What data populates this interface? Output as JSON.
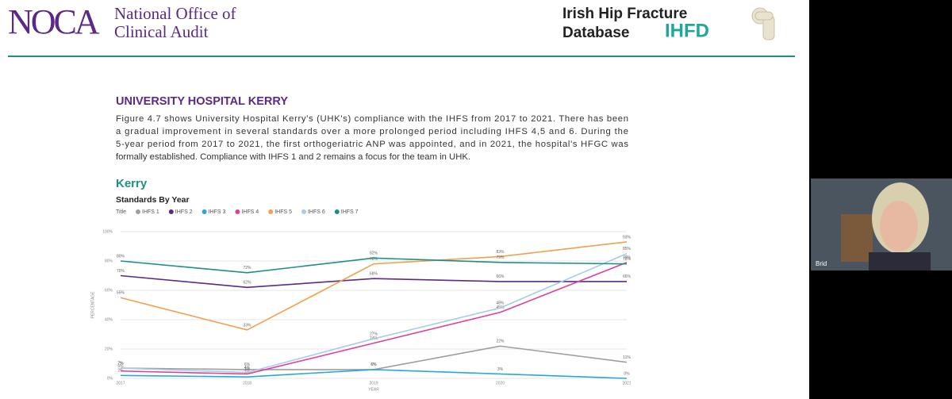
{
  "header": {
    "logo": "NOCA",
    "org_line1": "National Office of",
    "org_line2": "Clinical Audit",
    "db_line1": "Irish Hip Fracture",
    "db_line2": "Database",
    "db_abbr": "IHFD"
  },
  "section_title": "UNIVERSITY HOSPITAL KERRY",
  "paragraph": [
    "Figure 4.7 shows University Hospital Kerry's (UHK's) compliance with the IHFS from 2017 to 2021. There has been",
    "a gradual improvement in several standards over a more prolonged period including IHFS 4,5 and 6. During the",
    "5-year period from 2017 to 2021, the first orthogeriatric ANP was appointed, and in 2021, the hospital's HFGC was",
    "formally established. Compliance with IHFS 1 and 2 remains a focus for the team in UHK."
  ],
  "chart_data": {
    "type": "line",
    "title": "Kerry",
    "subtitle": "Standards By Year",
    "legend_title": "Title",
    "x_label": "YEAR",
    "y_label": "PERCENTAGE",
    "categories": [
      "2017",
      "2018",
      "2019",
      "2020",
      "2021"
    ],
    "ylim": [
      0,
      100
    ],
    "yticks": [
      {
        "value": 0,
        "label": "0%"
      },
      {
        "value": 20,
        "label": "20%"
      },
      {
        "value": 40,
        "label": "40%"
      },
      {
        "value": 60,
        "label": "60%"
      },
      {
        "value": 80,
        "label": "80%"
      },
      {
        "value": 100,
        "label": "100%"
      }
    ],
    "grid": true,
    "series": [
      {
        "name": "IHFS 1",
        "color": "#9e9e9e",
        "values": [
          7,
          6,
          6,
          22,
          11
        ],
        "value_labels": [
          "7%",
          "6%",
          "6%",
          "22%",
          "11%"
        ]
      },
      {
        "name": "IHFS 2",
        "color": "#5b2a86",
        "values": [
          70,
          62,
          68,
          66,
          66
        ],
        "value_labels": [
          "70%",
          "62%",
          "68%",
          "66%",
          "66%"
        ]
      },
      {
        "name": "IHFS 3",
        "color": "#29a8d6",
        "values": [
          2,
          1,
          6,
          3,
          0
        ],
        "value_labels": [
          "2%",
          "1%",
          "6%",
          "3%",
          "0%"
        ]
      },
      {
        "name": "IHFS 4",
        "color": "#e0409a",
        "values": [
          5,
          3,
          24,
          45,
          79
        ],
        "value_labels": [
          "5%",
          "3%",
          "24%",
          "45%",
          "79%"
        ]
      },
      {
        "name": "IHFS 5",
        "color": "#f0a050",
        "values": [
          55,
          33,
          78,
          83,
          93
        ],
        "value_labels": [
          "55%",
          "33%",
          "78%",
          "83%",
          "93%"
        ]
      },
      {
        "name": "IHFS 6",
        "color": "#a9cbe8",
        "values": [
          7,
          4,
          27,
          48,
          85
        ],
        "value_labels": [
          "7%",
          "4%",
          "27%",
          "48%",
          "85%"
        ]
      },
      {
        "name": "IHFS 7",
        "color": "#1f8f86",
        "values": [
          80,
          72,
          82,
          79,
          78
        ],
        "value_labels": [
          "80%",
          "72%",
          "82%",
          "79%",
          "78%"
        ]
      }
    ]
  },
  "participant": {
    "name": "Brid"
  }
}
